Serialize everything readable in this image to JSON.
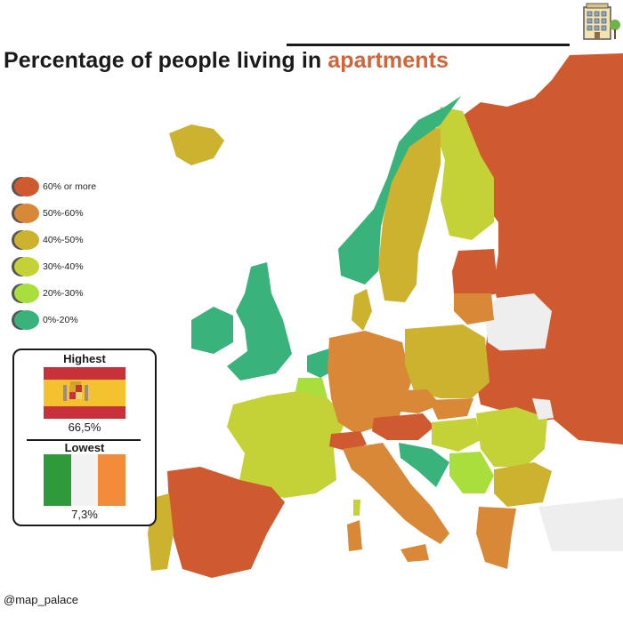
{
  "title": {
    "main": "Percentage of people living in",
    "accent": "apartments"
  },
  "colors": {
    "c60plus": "#cf5a2f",
    "c50_60": "#d98838",
    "c40_50": "#ccb22f",
    "c30_40": "#c4d238",
    "c20_30": "#a9df3d",
    "c0_20": "#39b27b",
    "nodata": "#eeeeee",
    "accent": "#d0643a"
  },
  "legend": [
    {
      "label": "60% or more",
      "color": "#cf5a2f"
    },
    {
      "label": "50%-60%",
      "color": "#d98838"
    },
    {
      "label": "40%-50%",
      "color": "#ccb22f"
    },
    {
      "label": "30%-40%",
      "color": "#c4d238"
    },
    {
      "label": "20%-30%",
      "color": "#a9df3d"
    },
    {
      "label": "0%-20%",
      "color": "#39b27b"
    }
  ],
  "highest": {
    "heading": "Highest",
    "flag": "spain-flag",
    "value": "66,5%"
  },
  "lowest": {
    "heading": "Lowest",
    "flag": "ireland-flag",
    "value": "7,3%"
  },
  "credit": "@map_palace",
  "icon": "apartment-building-icon"
}
